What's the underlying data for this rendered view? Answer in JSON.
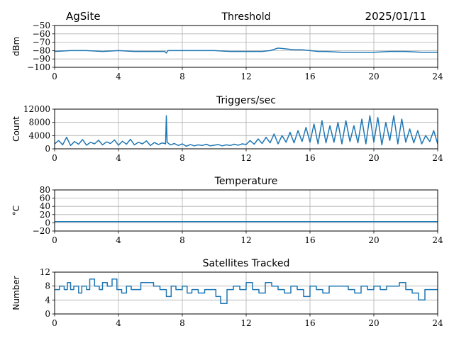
{
  "header": {
    "site": "AgSite",
    "date": "2025/01/11"
  },
  "colors": {
    "line": "#1f77b4",
    "grid": "#b0b0b0",
    "axis": "#000000"
  },
  "chart_data": [
    {
      "type": "line",
      "title": "Threshold",
      "ylabel": "dBm",
      "xlabel": "",
      "xlim": [
        0,
        24
      ],
      "ylim": [
        -100,
        -50
      ],
      "xticks": [
        0,
        4,
        8,
        12,
        16,
        20,
        24
      ],
      "yticks": [
        -100,
        -90,
        -80,
        -70,
        -60,
        -50
      ],
      "ytick_labels": [
        "−100",
        "−90",
        "−80",
        "−70",
        "−60",
        "−50"
      ],
      "grid": true,
      "series": [
        {
          "x": [
            0,
            1,
            2,
            3,
            4,
            5,
            6,
            6.9,
            7.0,
            7.1,
            8,
            9,
            10,
            11,
            12,
            13,
            13.5,
            14,
            14.5,
            15,
            15.5,
            16,
            16.5,
            17,
            18,
            19,
            20,
            21,
            22,
            23,
            24
          ],
          "y": [
            -81,
            -80,
            -80,
            -81,
            -80,
            -81,
            -81,
            -81,
            -83,
            -80,
            -80,
            -80,
            -80,
            -81,
            -81,
            -81,
            -80,
            -77,
            -78,
            -79,
            -79,
            -80,
            -81,
            -81,
            -82,
            -82,
            -82,
            -81,
            -81,
            -82,
            -82
          ]
        }
      ]
    },
    {
      "type": "line",
      "title": "Triggers/sec",
      "ylabel": "Count",
      "xlabel": "",
      "xlim": [
        0,
        24
      ],
      "ylim": [
        0,
        12000
      ],
      "xticks": [
        0,
        4,
        8,
        12,
        16,
        20,
        24
      ],
      "yticks": [
        0,
        4000,
        8000,
        12000
      ],
      "ytick_labels": [
        "0",
        "4000",
        "8000",
        "12000"
      ],
      "grid": true,
      "series": [
        {
          "x": [
            0,
            0.25,
            0.5,
            0.75,
            1,
            1.25,
            1.5,
            1.75,
            2,
            2.25,
            2.5,
            2.75,
            3,
            3.25,
            3.5,
            3.75,
            4,
            4.25,
            4.5,
            4.75,
            5,
            5.25,
            5.5,
            5.75,
            6,
            6.25,
            6.5,
            6.75,
            6.95,
            7.0,
            7.05,
            7.25,
            7.5,
            7.75,
            8,
            8.25,
            8.5,
            8.75,
            9,
            9.25,
            9.5,
            9.75,
            10,
            10.25,
            10.5,
            10.75,
            11,
            11.25,
            11.5,
            11.75,
            12,
            12.25,
            12.5,
            12.75,
            13,
            13.25,
            13.5,
            13.75,
            14,
            14.25,
            14.5,
            14.75,
            15,
            15.25,
            15.5,
            15.75,
            16,
            16.25,
            16.5,
            16.75,
            17,
            17.25,
            17.5,
            17.75,
            18,
            18.25,
            18.5,
            18.75,
            19,
            19.25,
            19.5,
            19.75,
            20,
            20.25,
            20.5,
            20.75,
            21,
            21.25,
            21.5,
            21.75,
            22,
            22.25,
            22.5,
            22.75,
            23,
            23.25,
            23.5,
            23.75,
            24
          ],
          "y": [
            1500,
            2500,
            1200,
            3500,
            1000,
            2200,
            1400,
            2800,
            1100,
            2000,
            1500,
            2600,
            1200,
            2100,
            1600,
            2700,
            1100,
            2300,
            1400,
            2900,
            1200,
            2000,
            1500,
            2400,
            1000,
            1900,
            1300,
            1800,
            1500,
            10000,
            2000,
            1200,
            1600,
            1000,
            1500,
            800,
            1300,
            900,
            1200,
            1000,
            1400,
            900,
            1100,
            1300,
            900,
            1200,
            1000,
            1400,
            1100,
            1500,
            1300,
            2500,
            1400,
            3000,
            1600,
            3500,
            1800,
            4500,
            1500,
            4000,
            2000,
            5000,
            1800,
            5500,
            2200,
            6500,
            2000,
            7500,
            1500,
            8500,
            1800,
            7000,
            2000,
            8000,
            1500,
            8500,
            2200,
            7000,
            1800,
            9000,
            1500,
            10000,
            2000,
            9500,
            1200,
            8000,
            2500,
            10000,
            1500,
            9000,
            2000,
            6000,
            1800,
            5500,
            1500,
            4000,
            2200,
            5500,
            1500
          ]
        }
      ]
    },
    {
      "type": "line",
      "title": "Temperature",
      "ylabel": "°C",
      "xlabel": "",
      "xlim": [
        0,
        24
      ],
      "ylim": [
        -20,
        80
      ],
      "xticks": [
        0,
        4,
        8,
        12,
        16,
        20,
        24
      ],
      "yticks": [
        -20,
        0,
        20,
        40,
        60,
        80
      ],
      "ytick_labels": [
        "−20",
        "0",
        "20",
        "40",
        "60",
        "80"
      ],
      "grid": true,
      "series": [
        {
          "x": [
            0,
            24
          ],
          "y": [
            3,
            3
          ]
        }
      ]
    },
    {
      "type": "line",
      "title": "Satellites Tracked",
      "ylabel": "Number",
      "xlabel": "",
      "xlim": [
        0,
        24
      ],
      "ylim": [
        0,
        12
      ],
      "xticks": [
        0,
        4,
        8,
        12,
        16,
        20,
        24
      ],
      "yticks": [
        0,
        4,
        8,
        12
      ],
      "ytick_labels": [
        "0",
        "4",
        "8",
        "12"
      ],
      "grid": true,
      "step": true,
      "series": [
        {
          "x": [
            0,
            0.3,
            0.6,
            0.8,
            1.0,
            1.2,
            1.5,
            1.7,
            2.0,
            2.2,
            2.5,
            2.8,
            3.0,
            3.3,
            3.6,
            3.9,
            4.2,
            4.5,
            4.8,
            5.1,
            5.4,
            5.8,
            6.2,
            6.6,
            7.0,
            7.3,
            7.6,
            8.0,
            8.3,
            8.6,
            9.0,
            9.4,
            9.8,
            10.1,
            10.4,
            10.8,
            11.2,
            11.6,
            12.0,
            12.4,
            12.8,
            13.2,
            13.6,
            14.0,
            14.4,
            14.8,
            15.2,
            15.6,
            16.0,
            16.4,
            16.8,
            17.2,
            17.6,
            18.0,
            18.4,
            18.8,
            19.2,
            19.6,
            20.0,
            20.4,
            20.8,
            21.2,
            21.6,
            22.0,
            22.4,
            22.8,
            23.2,
            23.6,
            24.0
          ],
          "y": [
            7,
            8,
            7,
            9,
            7,
            8,
            6,
            8,
            7,
            10,
            8,
            7,
            9,
            8,
            10,
            7,
            6,
            8,
            7,
            7,
            9,
            9,
            8,
            7,
            5,
            8,
            7,
            8,
            6,
            7,
            6,
            7,
            7,
            5,
            3,
            7,
            8,
            7,
            9,
            7,
            6,
            9,
            8,
            7,
            6,
            8,
            7,
            5,
            8,
            7,
            6,
            8,
            8,
            8,
            7,
            6,
            8,
            7,
            8,
            7,
            8,
            8,
            9,
            7,
            6,
            4,
            7,
            7,
            7
          ]
        }
      ]
    }
  ]
}
